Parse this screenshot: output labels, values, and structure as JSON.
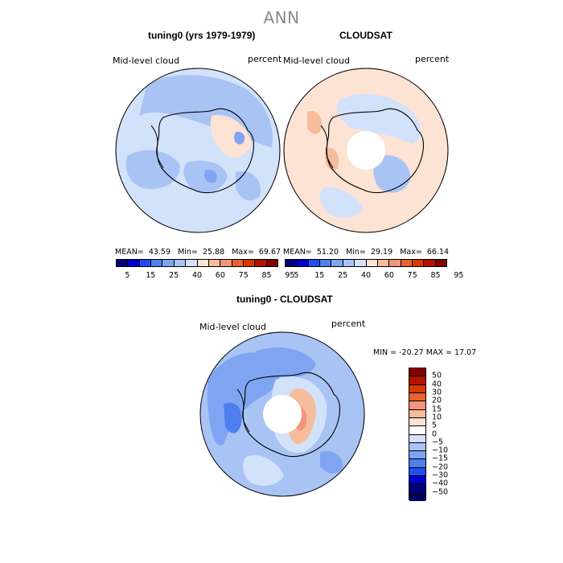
{
  "title": "ANN",
  "panels": {
    "model": {
      "title": "tuning0 (yrs 1979-1979)",
      "field": "Mid-level cloud",
      "units": "percent",
      "stats": {
        "mean_label": "MEAN=",
        "mean": "43.59",
        "min_label": "Min=",
        "min": "25.88",
        "max_label": "Max=",
        "max": "69.67"
      }
    },
    "obs": {
      "title": "CLOUDSAT",
      "field": "Mid-level cloud",
      "units": "percent",
      "stats": {
        "mean_label": "MEAN=",
        "mean": "51.20",
        "min_label": "Min=",
        "min": "29.19",
        "max_label": "Max=",
        "max": "66.14"
      }
    },
    "diff": {
      "title": "tuning0 - CLOUDSAT",
      "field": "Mid-level cloud",
      "units": "percent",
      "range_text": "MIN = -20.27  MAX =  17.07"
    }
  },
  "chart_data": [
    {
      "type": "heatmap",
      "name": "model",
      "projection": "south-polar-stereographic",
      "title": "tuning0 (yrs 1979-1979)",
      "variable": "Mid-level cloud",
      "units": "percent",
      "mean": 43.59,
      "min": 25.88,
      "max": 69.67,
      "colorbar": {
        "tick_labels": [
          "5",
          "15",
          "25",
          "40",
          "60",
          "75",
          "85",
          "95"
        ],
        "colors": [
          "#00007e",
          "#0000cc",
          "#1f4ff0",
          "#4f7fee",
          "#7fa5f2",
          "#a9c3f5",
          "#d2e2fb",
          "#fde3d3",
          "#f6bd9c",
          "#f2937a",
          "#e9632f",
          "#d93800",
          "#b41200",
          "#840000"
        ]
      }
    },
    {
      "type": "heatmap",
      "name": "obs",
      "projection": "south-polar-stereographic",
      "title": "CLOUDSAT",
      "variable": "Mid-level cloud",
      "units": "percent",
      "mean": 51.2,
      "min": 29.19,
      "max": 66.14,
      "colorbar": {
        "tick_labels": [
          "5",
          "15",
          "25",
          "40",
          "60",
          "75",
          "85",
          "95"
        ],
        "colors": [
          "#00007e",
          "#0000cc",
          "#1f4ff0",
          "#4f7fee",
          "#7fa5f2",
          "#a9c3f5",
          "#d2e2fb",
          "#fde3d3",
          "#f6bd9c",
          "#f2937a",
          "#e9632f",
          "#d93800",
          "#b41200",
          "#840000"
        ]
      }
    },
    {
      "type": "heatmap",
      "name": "difference",
      "projection": "south-polar-stereographic",
      "title": "tuning0 - CLOUDSAT",
      "variable": "Mid-level cloud",
      "units": "percent",
      "min": -20.27,
      "max": 17.07,
      "colorbar": {
        "orientation": "vertical",
        "tick_labels": [
          "50",
          "40",
          "30",
          "20",
          "15",
          "10",
          "5",
          "0",
          "−5",
          "−10",
          "−15",
          "−20",
          "−30",
          "−40",
          "−50"
        ],
        "colors": [
          "#840000",
          "#b41200",
          "#d93800",
          "#e9632f",
          "#f2937a",
          "#f6bd9c",
          "#fde3d3",
          "#ffffff",
          "#d2e2fb",
          "#a9c3f5",
          "#7fa5f2",
          "#4f7fee",
          "#1f4ff0",
          "#0000cc",
          "#00007e",
          "#000060"
        ]
      }
    }
  ]
}
